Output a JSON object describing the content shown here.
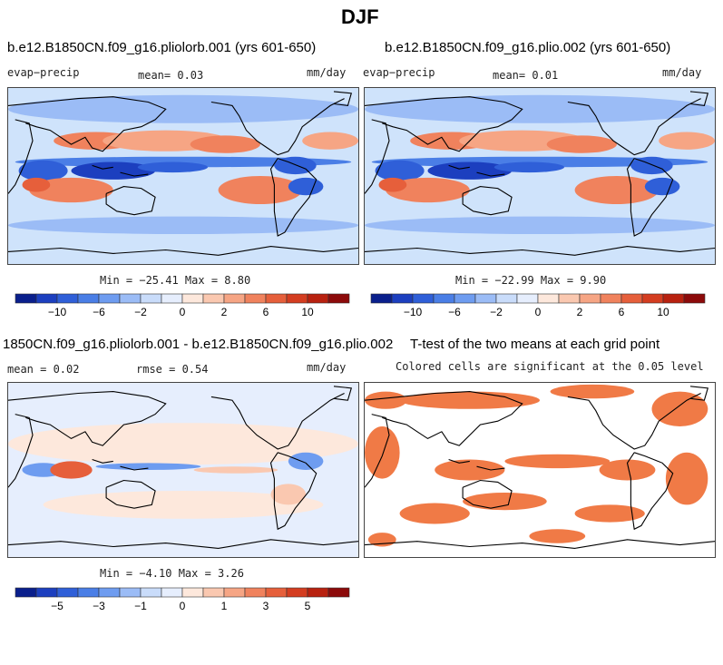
{
  "figure": {
    "title": "DJF"
  },
  "panels": {
    "p1": {
      "title": "b.e12.B1850CN.f09_g16.pliolorb.001 (yrs 601-650)",
      "left": "evap−precip",
      "center": "mean=    0.03",
      "right": "mm/day",
      "minmax": "Min = −25.41 Max =   8.80"
    },
    "p2": {
      "title": "b.e12.B1850CN.f09_g16.plio.002 (yrs 601-650)",
      "left": "evap−precip",
      "center": "mean=    0.01",
      "right": "mm/day",
      "minmax": "Min = −22.99 Max =   9.90"
    },
    "p3": {
      "title": "1850CN.f09_g16.pliolorb.001 - b.e12.B1850CN.f09_g16.plio.002",
      "left": "mean =    0.02",
      "center": "rmse =    0.54",
      "right": "mm/day",
      "minmax": "Min =  −4.10 Max =   3.26"
    },
    "p4": {
      "title": "T-test of the two means at each grid point",
      "subtitle": "Colored cells are significant at the 0.05 level"
    }
  },
  "colors": {
    "ocean_base": "#cfe3fb",
    "significance": "#f07a46",
    "coast": "#000000",
    "palette": [
      "#0a1f8c",
      "#1c3fbf",
      "#2f5fd8",
      "#4a7ee6",
      "#6e9cf0",
      "#9bbcf6",
      "#c9dcfa",
      "#e6eefd",
      "#fde8dc",
      "#fac8b0",
      "#f6a584",
      "#f0825d",
      "#e65f3b",
      "#d43d20",
      "#b8210f",
      "#8c0a0a"
    ]
  },
  "chart_data": [
    {
      "type": "heatmap",
      "panel": "p1",
      "variable": "evap−precip",
      "units": "mm/day",
      "mean": 0.03,
      "min": -25.41,
      "max": 8.8,
      "colorbar": {
        "levels": [
          -14,
          -12,
          -10,
          -8,
          -6,
          -4,
          -2,
          -1,
          0,
          1,
          2,
          4,
          6,
          8,
          10,
          12,
          14
        ],
        "tick_values": [
          -10,
          -6,
          -2,
          0,
          2,
          6,
          10
        ],
        "tick_labels": [
          "−10",
          "−6",
          "−2",
          "0",
          "2",
          "6",
          "10"
        ]
      }
    },
    {
      "type": "heatmap",
      "panel": "p2",
      "variable": "evap−precip",
      "units": "mm/day",
      "mean": 0.01,
      "min": -22.99,
      "max": 9.9,
      "colorbar": {
        "levels": [
          -14,
          -12,
          -10,
          -8,
          -6,
          -4,
          -2,
          -1,
          0,
          1,
          2,
          4,
          6,
          8,
          10,
          12,
          14
        ],
        "tick_values": [
          -10,
          -6,
          -2,
          0,
          2,
          6,
          10
        ],
        "tick_labels": [
          "−10",
          "−6",
          "−2",
          "0",
          "2",
          "6",
          "10"
        ]
      }
    },
    {
      "type": "heatmap",
      "panel": "p3",
      "variable": "difference",
      "units": "mm/day",
      "mean": 0.02,
      "rmse": 0.54,
      "min": -4.1,
      "max": 3.26,
      "colorbar": {
        "levels": [
          -7,
          -6,
          -5,
          -4,
          -3,
          -2,
          -1,
          -0.5,
          0,
          0.5,
          1,
          2,
          3,
          4,
          5,
          6,
          7
        ],
        "tick_values": [
          -5,
          -3,
          -1,
          0,
          1,
          3,
          5
        ],
        "tick_labels": [
          "−5",
          "−3",
          "−1",
          "0",
          "1",
          "3",
          "5"
        ]
      }
    },
    {
      "type": "heatmap",
      "panel": "p4",
      "variable": "significance mask",
      "significance_level": 0.05
    }
  ]
}
